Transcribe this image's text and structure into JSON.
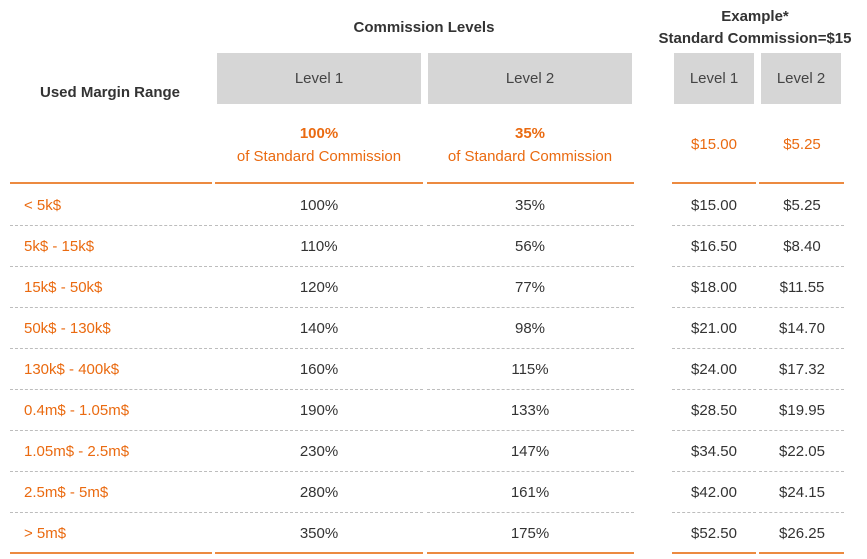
{
  "headers": {
    "used_margin_range": "Used Margin Range",
    "commission_levels": "Commission Levels",
    "example_line1": "Example*",
    "example_line2": "Standard Commission=$15",
    "level1": "Level 1",
    "level2": "Level 2",
    "ex_level1": "Level 1",
    "ex_level2": "Level 2"
  },
  "summary": {
    "level1_pct": "100%",
    "level1_sub": "of Standard Commission",
    "level2_pct": "35%",
    "level2_sub": "of Standard Commission",
    "ex_level1": "$15.00",
    "ex_level2": "$5.25"
  },
  "colors": {
    "accent": "#ea6a10",
    "header_box": "#d6d6d6"
  },
  "rows": [
    {
      "range": "< 5k$",
      "level1": "100%",
      "level2": "35%",
      "ex1": "$15.00",
      "ex2": "$5.25"
    },
    {
      "range": "5k$ - 15k$",
      "level1": "110%",
      "level2": "56%",
      "ex1": "$16.50",
      "ex2": "$8.40"
    },
    {
      "range": "15k$ - 50k$",
      "level1": "120%",
      "level2": "77%",
      "ex1": "$18.00",
      "ex2": "$11.55"
    },
    {
      "range": "50k$ - 130k$",
      "level1": "140%",
      "level2": "98%",
      "ex1": "$21.00",
      "ex2": "$14.70"
    },
    {
      "range": "130k$ - 400k$",
      "level1": "160%",
      "level2": "115%",
      "ex1": "$24.00",
      "ex2": "$17.32"
    },
    {
      "range": "0.4m$ - 1.05m$",
      "level1": "190%",
      "level2": "133%",
      "ex1": "$28.50",
      "ex2": "$19.95"
    },
    {
      "range": "1.05m$ - 2.5m$",
      "level1": "230%",
      "level2": "147%",
      "ex1": "$34.50",
      "ex2": "$22.05"
    },
    {
      "range": "2.5m$ - 5m$",
      "level1": "280%",
      "level2": "161%",
      "ex1": "$42.00",
      "ex2": "$24.15"
    },
    {
      "range": "> 5m$",
      "level1": "350%",
      "level2": "175%",
      "ex1": "$52.50",
      "ex2": "$26.25"
    }
  ]
}
